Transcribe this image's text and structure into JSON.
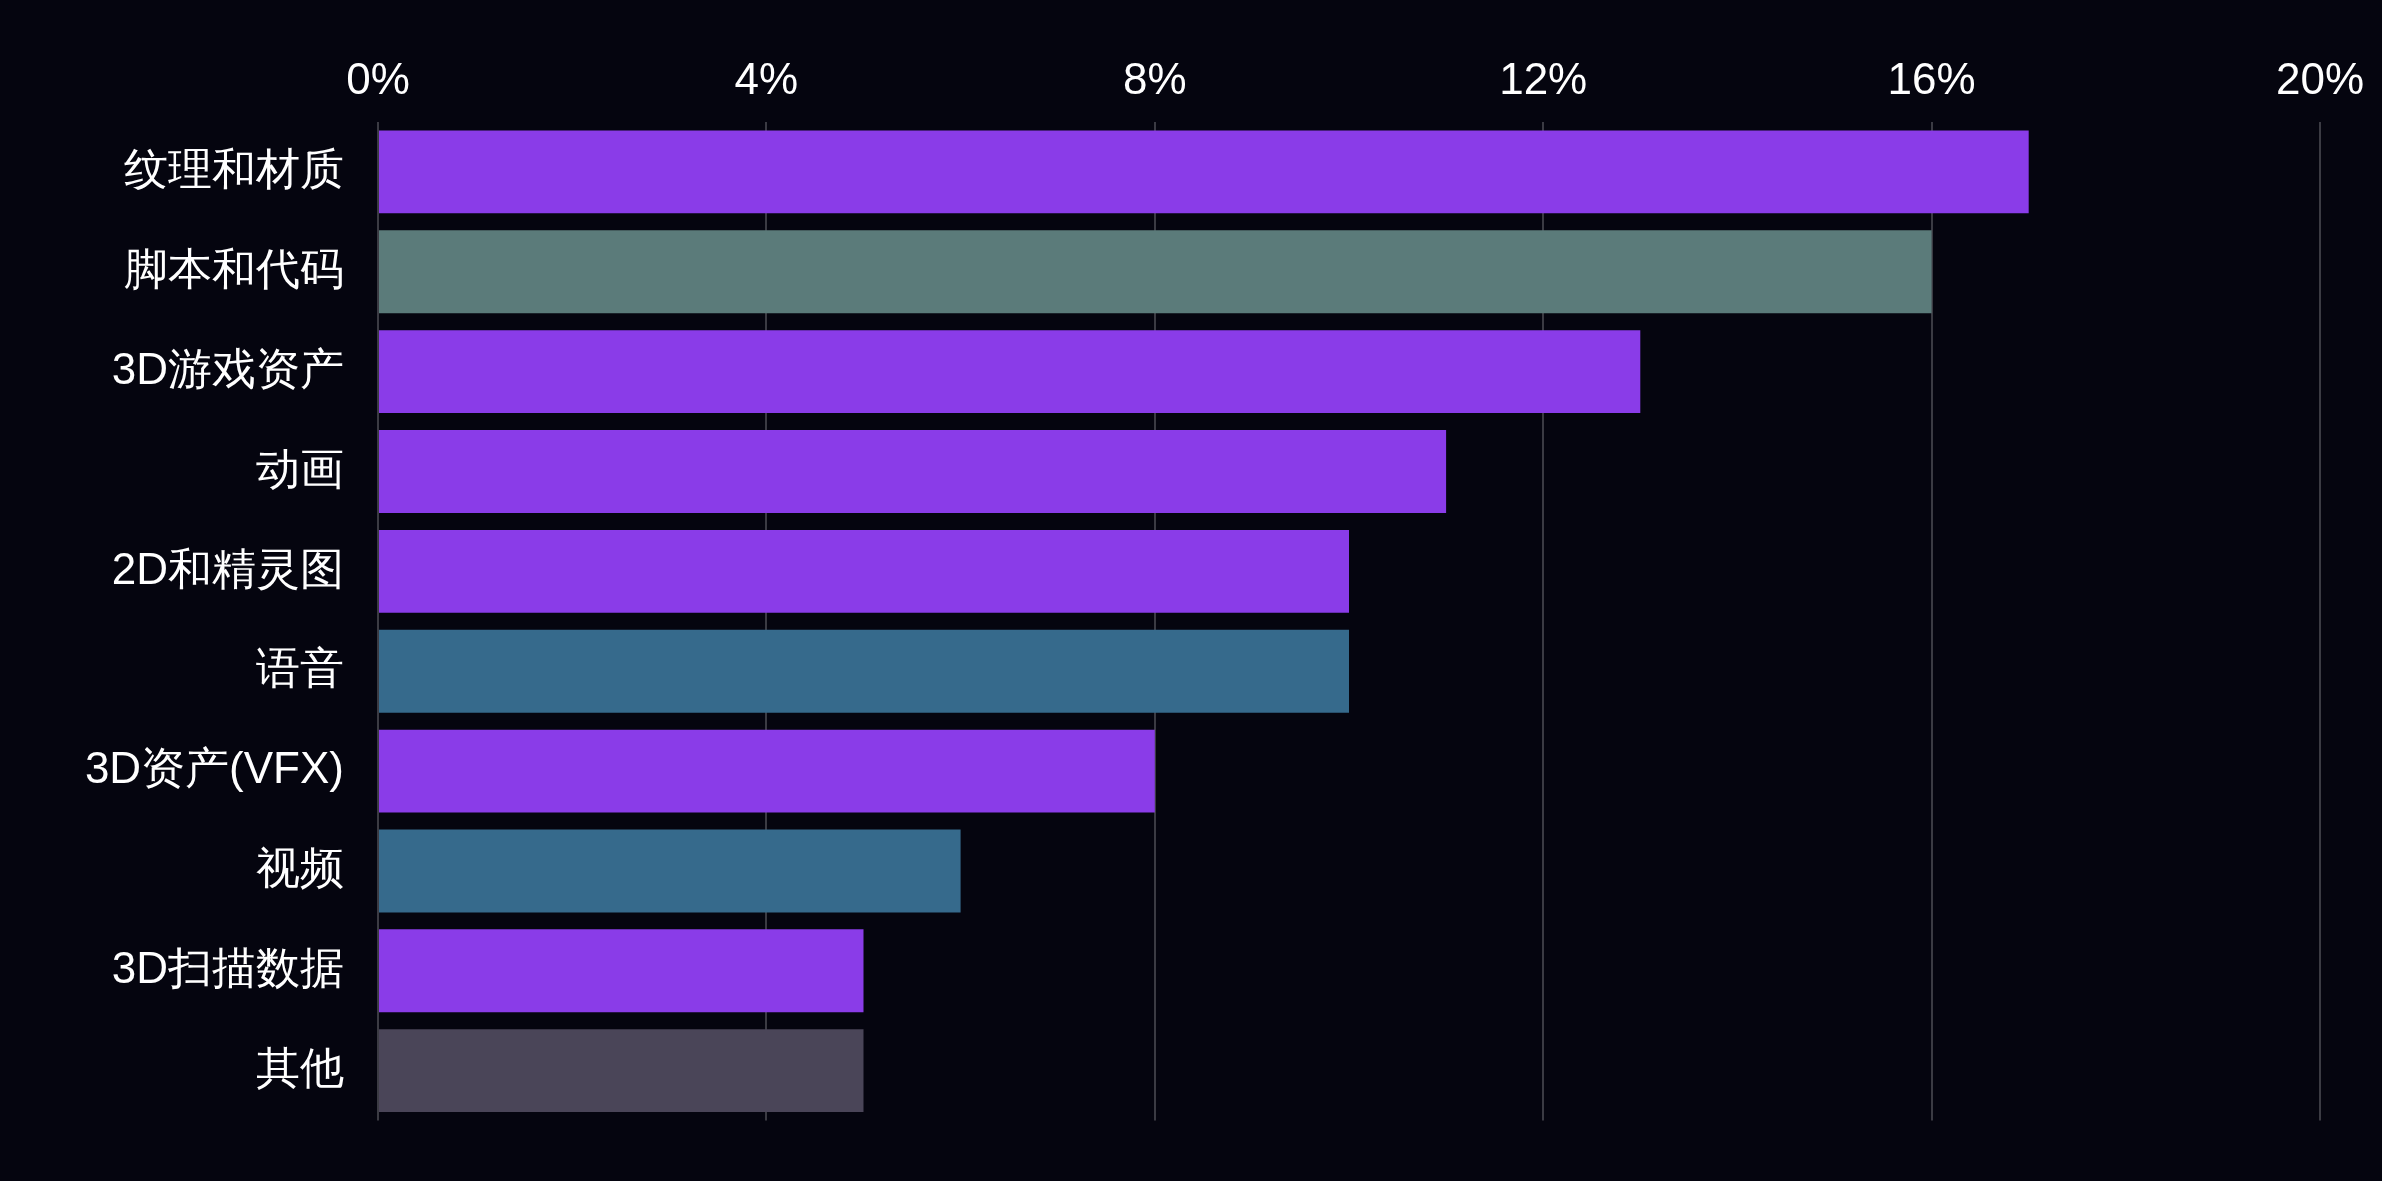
{
  "chart_data": {
    "type": "bar",
    "orientation": "horizontal",
    "categories": [
      "纹理和材质",
      "脚本和代码",
      "3D游戏资产",
      "动画",
      "2D和精灵图",
      "语音",
      "3D资产(VFX)",
      "视频",
      "3D扫描数据",
      "其他"
    ],
    "values": [
      17,
      16,
      13,
      11,
      10,
      10,
      8,
      6,
      5,
      5
    ],
    "colors": [
      "#8a3ce8",
      "#5b7b7a",
      "#8a3ce8",
      "#8a3ce8",
      "#8a3ce8",
      "#366a8c",
      "#8a3ce8",
      "#366a8c",
      "#8a3ce8",
      "#4a4558"
    ],
    "xlim": [
      0,
      20
    ],
    "xticks": [
      {
        "value": 0,
        "label": "0%"
      },
      {
        "value": 4,
        "label": "4%"
      },
      {
        "value": 8,
        "label": "8%"
      },
      {
        "value": 12,
        "label": "12%"
      },
      {
        "value": 16,
        "label": "16%"
      },
      {
        "value": 20,
        "label": "20%"
      }
    ],
    "grid": "x",
    "legend": false
  }
}
